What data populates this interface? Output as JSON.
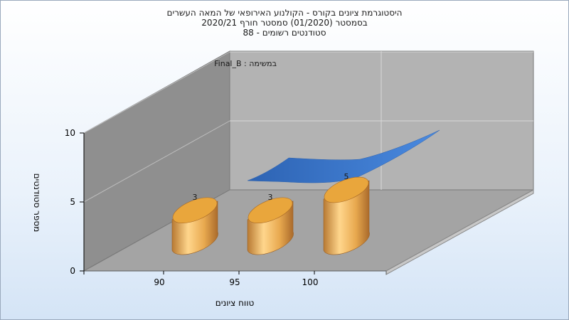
{
  "chart_data": {
    "type": "bar",
    "title_lines": [
      "היסטוגרמת ציונים בקורס - הקולנוע האירופאי של המאה העשרים",
      "בסמסטר  (01/2020)  סמסטר חורף  2020/21",
      "סטודנטים רשומים - 88"
    ],
    "annotation": "במשימה : Final_B",
    "xlabel": "טווח ציונים",
    "ylabel": "מספר סטודנטים",
    "categories": [
      "90",
      "95",
      "100"
    ],
    "values": [
      3,
      3,
      5
    ],
    "y_ticks": [
      "0",
      "5",
      "10"
    ],
    "ylim": [
      0,
      10
    ],
    "grid": true,
    "colors": {
      "bar_light": "#ffd68c",
      "bar_mid": "#e3a247",
      "bar_dark": "#a9692a",
      "wall": "#8f8f8f",
      "back_wall": "#b5b5b5",
      "floor": "#a2a2a2",
      "curve": "#3a79cf"
    }
  }
}
